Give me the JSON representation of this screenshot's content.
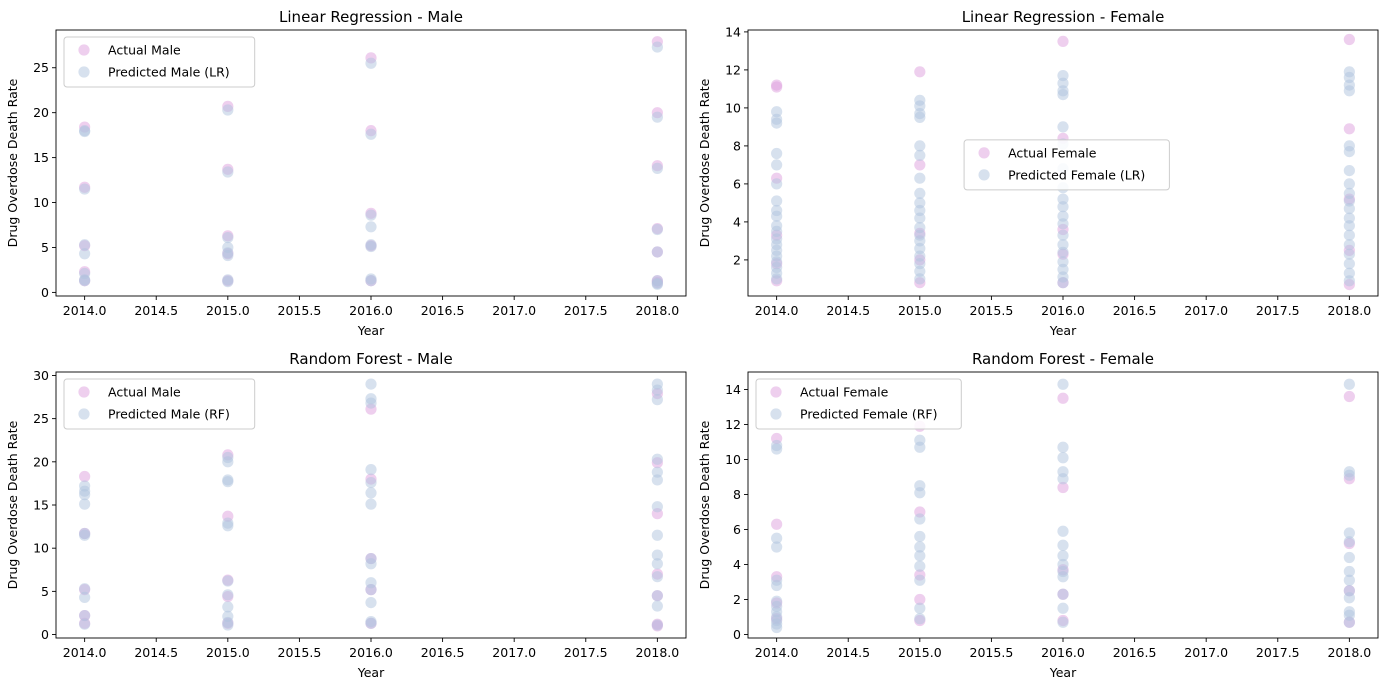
{
  "colors": {
    "actual": "#dda0dd",
    "predicted": "#b0c4de"
  },
  "chart_data": [
    {
      "type": "scatter",
      "title": "Linear Regression - Male",
      "xlabel": "Year",
      "ylabel": "Drug Overdose Death Rate",
      "xlim": [
        2013.8,
        2018.2
      ],
      "ylim": [
        -0.4,
        29.2
      ],
      "xticks": [
        2014.0,
        2014.5,
        2015.0,
        2015.5,
        2016.0,
        2016.5,
        2017.0,
        2017.5,
        2018.0
      ],
      "yticks": [
        0,
        5,
        10,
        15,
        20,
        25
      ],
      "legend_position": "upper-left",
      "series": [
        {
          "name": "Actual Male",
          "color": "#dda0dd",
          "x": [
            2014,
            2014,
            2014,
            2014,
            2014,
            2015,
            2015,
            2015,
            2015,
            2015,
            2016,
            2016,
            2016,
            2016,
            2016,
            2018,
            2018,
            2018,
            2018,
            2018,
            2018,
            2018
          ],
          "y": [
            18.4,
            11.7,
            5.2,
            2.3,
            1.3,
            20.7,
            13.7,
            6.3,
            4.3,
            1.3,
            26.1,
            18.0,
            8.8,
            5.2,
            1.3,
            27.9,
            20.0,
            14.1,
            7.1,
            4.5,
            1.3,
            1.1
          ]
        },
        {
          "name": "Predicted Male (LR)",
          "color": "#b0c4de",
          "x": [
            2014,
            2014,
            2014,
            2014,
            2014,
            2014,
            2014,
            2014,
            2015,
            2015,
            2015,
            2015,
            2015,
            2015,
            2015,
            2015,
            2016,
            2016,
            2016,
            2016,
            2016,
            2016,
            2016,
            2016,
            2018,
            2018,
            2018,
            2018,
            2018,
            2018,
            2018,
            2018
          ],
          "y": [
            18.0,
            17.9,
            11.5,
            5.3,
            4.3,
            2.1,
            1.4,
            1.3,
            20.3,
            13.4,
            6.1,
            5.0,
            4.4,
            4.1,
            1.4,
            1.2,
            25.5,
            17.6,
            8.6,
            7.3,
            5.3,
            5.1,
            1.5,
            1.3,
            27.3,
            19.5,
            13.8,
            7.0,
            4.5,
            1.3,
            1.0,
            0.9
          ]
        }
      ]
    },
    {
      "type": "scatter",
      "title": "Linear Regression - Female",
      "xlabel": "Year",
      "ylabel": "Drug Overdose Death Rate",
      "xlim": [
        2013.8,
        2018.2
      ],
      "ylim": [
        0.1,
        14.1
      ],
      "xticks": [
        2014.0,
        2014.5,
        2015.0,
        2015.5,
        2016.0,
        2016.5,
        2017.0,
        2017.5,
        2018.0
      ],
      "yticks": [
        2,
        4,
        6,
        8,
        10,
        12,
        14
      ],
      "legend_position": "center",
      "series": [
        {
          "name": "Actual Female",
          "color": "#dda0dd",
          "x": [
            2014,
            2014,
            2014,
            2014,
            2014,
            2014,
            2015,
            2015,
            2015,
            2015,
            2015,
            2016,
            2016,
            2016,
            2016,
            2016,
            2018,
            2018,
            2018,
            2018,
            2018
          ],
          "y": [
            11.2,
            11.1,
            6.3,
            3.3,
            1.8,
            0.9,
            11.9,
            7.0,
            3.4,
            2.0,
            0.8,
            13.5,
            8.4,
            3.6,
            2.3,
            0.8,
            13.6,
            8.9,
            5.2,
            2.5,
            0.7
          ]
        },
        {
          "name": "Predicted Female (LR)",
          "color": "#b0c4de",
          "x": [
            2014,
            2014,
            2014,
            2014,
            2014,
            2014,
            2014,
            2014,
            2014,
            2014,
            2014,
            2014,
            2014,
            2014,
            2014,
            2014,
            2014,
            2014,
            2014,
            2015,
            2015,
            2015,
            2015,
            2015,
            2015,
            2015,
            2015,
            2015,
            2015,
            2015,
            2015,
            2015,
            2015,
            2015,
            2015,
            2015,
            2015,
            2015,
            2016,
            2016,
            2016,
            2016,
            2016,
            2016,
            2016,
            2016,
            2016,
            2016,
            2016,
            2016,
            2016,
            2016,
            2016,
            2016,
            2016,
            2016,
            2016,
            2018,
            2018,
            2018,
            2018,
            2018,
            2018,
            2018,
            2018,
            2018,
            2018,
            2018,
            2018,
            2018,
            2018,
            2018,
            2018,
            2018,
            2018,
            2018
          ],
          "y": [
            9.8,
            9.4,
            9.2,
            7.6,
            7.0,
            6.0,
            5.1,
            4.6,
            4.3,
            3.8,
            3.5,
            3.1,
            2.8,
            2.5,
            2.2,
            1.9,
            1.6,
            1.3,
            1.0,
            10.4,
            10.1,
            9.7,
            9.5,
            8.0,
            7.5,
            6.3,
            5.5,
            5.0,
            4.6,
            4.2,
            3.7,
            3.3,
            3.0,
            2.6,
            2.2,
            1.8,
            1.4,
            1.0,
            11.7,
            11.3,
            10.9,
            10.7,
            9.0,
            8.1,
            6.8,
            5.8,
            5.2,
            4.8,
            4.3,
            3.9,
            3.3,
            2.8,
            2.4,
            1.9,
            1.5,
            1.1,
            0.8,
            11.9,
            11.6,
            11.2,
            10.9,
            8.0,
            7.7,
            6.7,
            6.0,
            5.5,
            5.1,
            4.7,
            4.2,
            3.8,
            3.3,
            2.8,
            2.3,
            1.8,
            1.3,
            0.9
          ]
        }
      ]
    },
    {
      "type": "scatter",
      "title": "Random Forest - Male",
      "xlabel": "Year",
      "ylabel": "Drug Overdose Death Rate",
      "xlim": [
        2013.8,
        2018.2
      ],
      "ylim": [
        -0.4,
        30.4
      ],
      "xticks": [
        2014.0,
        2014.5,
        2015.0,
        2015.5,
        2016.0,
        2016.5,
        2017.0,
        2017.5,
        2018.0
      ],
      "yticks": [
        0,
        5,
        10,
        15,
        20,
        25,
        30
      ],
      "legend_position": "upper-left",
      "series": [
        {
          "name": "Actual Male",
          "color": "#dda0dd",
          "x": [
            2014,
            2014,
            2014,
            2014,
            2014,
            2015,
            2015,
            2015,
            2015,
            2015,
            2016,
            2016,
            2016,
            2016,
            2016,
            2018,
            2018,
            2018,
            2018,
            2018,
            2018,
            2018
          ],
          "y": [
            18.3,
            11.7,
            5.2,
            2.2,
            1.3,
            20.8,
            13.7,
            6.3,
            4.4,
            1.3,
            26.1,
            18.0,
            8.8,
            5.2,
            1.3,
            27.9,
            19.9,
            14.0,
            7.0,
            4.5,
            1.2,
            1.0
          ]
        },
        {
          "name": "Predicted Male (RF)",
          "color": "#b0c4de",
          "x": [
            2014,
            2014,
            2014,
            2014,
            2014,
            2014,
            2014,
            2014,
            2014,
            2014,
            2015,
            2015,
            2015,
            2015,
            2015,
            2015,
            2015,
            2015,
            2015,
            2015,
            2015,
            2015,
            2016,
            2016,
            2016,
            2016,
            2016,
            2016,
            2016,
            2016,
            2016,
            2016,
            2016,
            2016,
            2016,
            2016,
            2018,
            2018,
            2018,
            2018,
            2018,
            2018,
            2018,
            2018,
            2018,
            2018,
            2018,
            2018,
            2018,
            2018
          ],
          "y": [
            17.2,
            16.6,
            16.2,
            15.1,
            11.7,
            11.5,
            5.3,
            4.3,
            2.2,
            1.2,
            20.5,
            20.0,
            17.9,
            17.7,
            12.9,
            12.6,
            6.2,
            4.6,
            3.2,
            2.1,
            1.4,
            1.1,
            29.0,
            27.3,
            26.8,
            19.1,
            17.6,
            16.4,
            15.1,
            8.8,
            8.2,
            6.0,
            5.2,
            3.7,
            1.5,
            1.3,
            29.0,
            28.3,
            27.2,
            20.3,
            18.8,
            17.9,
            14.8,
            11.5,
            9.2,
            8.2,
            6.7,
            4.5,
            3.3,
            1.1
          ]
        }
      ]
    },
    {
      "type": "scatter",
      "title": "Random Forest - Female",
      "xlabel": "Year",
      "ylabel": "Drug Overdose Death Rate",
      "xlim": [
        2013.8,
        2018.2
      ],
      "ylim": [
        -0.2,
        15.0
      ],
      "xticks": [
        2014.0,
        2014.5,
        2015.0,
        2015.5,
        2016.0,
        2016.5,
        2017.0,
        2017.5,
        2018.0
      ],
      "yticks": [
        0,
        2,
        4,
        6,
        8,
        10,
        12,
        14
      ],
      "legend_position": "upper-left",
      "series": [
        {
          "name": "Actual Female",
          "color": "#dda0dd",
          "x": [
            2014,
            2014,
            2014,
            2014,
            2014,
            2015,
            2015,
            2015,
            2015,
            2015,
            2016,
            2016,
            2016,
            2016,
            2016,
            2018,
            2018,
            2018,
            2018,
            2018
          ],
          "y": [
            11.2,
            6.3,
            3.3,
            1.8,
            0.9,
            11.9,
            7.0,
            3.4,
            2.0,
            0.8,
            13.5,
            8.4,
            3.7,
            2.3,
            0.8,
            13.6,
            8.9,
            5.2,
            2.5,
            0.7
          ]
        },
        {
          "name": "Predicted Female (RF)",
          "color": "#b0c4de",
          "x": [
            2014,
            2014,
            2014,
            2014,
            2014,
            2014,
            2014,
            2014,
            2014,
            2014,
            2014,
            2014,
            2014,
            2015,
            2015,
            2015,
            2015,
            2015,
            2015,
            2015,
            2015,
            2015,
            2015,
            2015,
            2015,
            2016,
            2016,
            2016,
            2016,
            2016,
            2016,
            2016,
            2016,
            2016,
            2016,
            2016,
            2016,
            2016,
            2016,
            2018,
            2018,
            2018,
            2018,
            2018,
            2018,
            2018,
            2018,
            2018,
            2018,
            2018,
            2018,
            2018
          ],
          "y": [
            10.8,
            10.6,
            5.5,
            5.0,
            3.1,
            2.8,
            1.9,
            1.6,
            1.3,
            1.0,
            0.8,
            0.6,
            0.4,
            11.1,
            10.7,
            8.5,
            8.1,
            6.6,
            5.6,
            5.0,
            4.5,
            3.9,
            3.1,
            1.5,
            0.9,
            14.3,
            10.7,
            10.1,
            9.3,
            8.9,
            5.9,
            5.1,
            4.5,
            4.0,
            3.6,
            3.3,
            2.3,
            1.5,
            0.7,
            14.3,
            9.3,
            9.1,
            5.8,
            5.3,
            4.4,
            3.6,
            3.1,
            2.5,
            2.1,
            1.3,
            1.1,
            0.7
          ]
        }
      ]
    }
  ]
}
